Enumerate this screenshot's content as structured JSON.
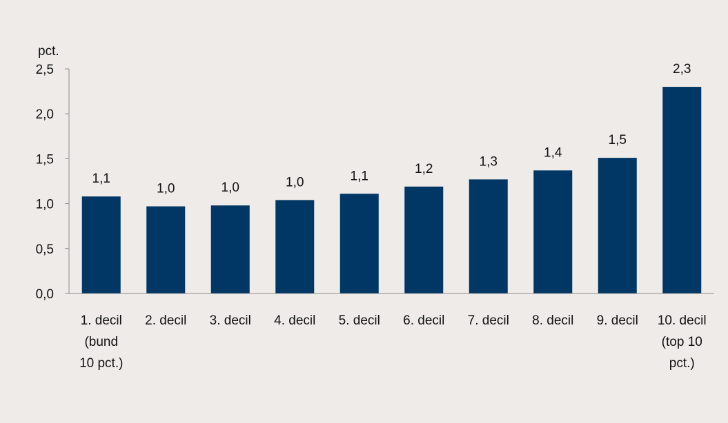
{
  "chart_data": {
    "type": "bar",
    "ylabel": "pct.",
    "ylim": [
      0,
      2.5
    ],
    "yticks": [
      "0,0",
      "0,5",
      "1,0",
      "1,5",
      "2,0",
      "2,5"
    ],
    "categories": [
      [
        "1. decil",
        "(bund",
        "10 pct.)"
      ],
      [
        "2. decil"
      ],
      [
        "3. decil"
      ],
      [
        "4. decil"
      ],
      [
        "5. decil"
      ],
      [
        "6. decil"
      ],
      [
        "7. decil"
      ],
      [
        "8. decil"
      ],
      [
        "9. decil"
      ],
      [
        "10. decil",
        "(top 10",
        "pct.)"
      ]
    ],
    "values": [
      1.08,
      0.97,
      0.98,
      1.04,
      1.11,
      1.19,
      1.27,
      1.37,
      1.51,
      2.3
    ],
    "data_labels": [
      "1,1",
      "1,0",
      "1,0",
      "1,0",
      "1,1",
      "1,2",
      "1,3",
      "1,4",
      "1,5",
      "2,3"
    ],
    "grid": false,
    "legend": "none",
    "colors": {
      "bar": "#003764",
      "background": "#eeebe8",
      "axis": "#8c8c8c"
    }
  }
}
